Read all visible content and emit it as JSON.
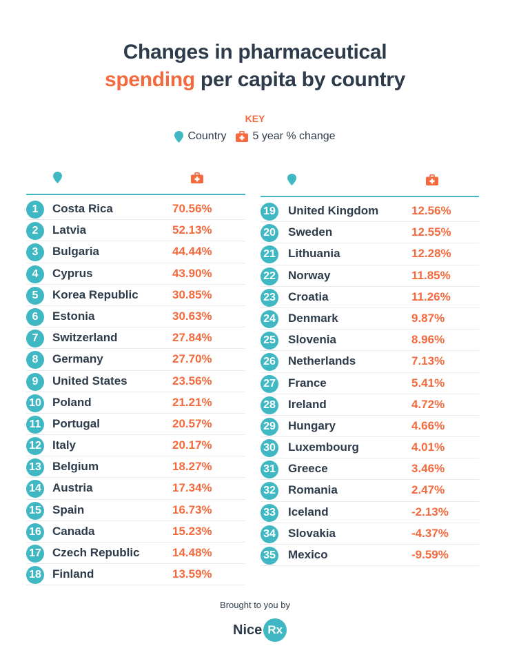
{
  "title": {
    "line1": "Changes in pharmaceutical",
    "line2_accent": "spending",
    "line2_rest": " per capita by country"
  },
  "key": {
    "label": "KEY",
    "country_label": "Country",
    "change_label": "5 year % change"
  },
  "colors": {
    "accent": "#f26a3d",
    "teal": "#3fb8c4",
    "text": "#2d3b4a"
  },
  "icons": {
    "country": "map-pin-icon",
    "change": "medical-kit-icon"
  },
  "chart_data": {
    "type": "table",
    "columns": [
      "Rank",
      "Country",
      "5 year % change"
    ],
    "rows": [
      {
        "rank": "1",
        "country": "Costa Rica",
        "change": "70.56%"
      },
      {
        "rank": "2",
        "country": "Latvia",
        "change": "52.13%"
      },
      {
        "rank": "3",
        "country": "Bulgaria",
        "change": "44.44%"
      },
      {
        "rank": "4",
        "country": "Cyprus",
        "change": "43.90%"
      },
      {
        "rank": "5",
        "country": "Korea Republic",
        "change": "30.85%"
      },
      {
        "rank": "6",
        "country": "Estonia",
        "change": "30.63%"
      },
      {
        "rank": "7",
        "country": "Switzerland",
        "change": "27.84%"
      },
      {
        "rank": "8",
        "country": "Germany",
        "change": "27.70%"
      },
      {
        "rank": "9",
        "country": "United States",
        "change": "23.56%"
      },
      {
        "rank": "10",
        "country": "Poland",
        "change": "21.21%"
      },
      {
        "rank": "11",
        "country": "Portugal",
        "change": "20.57%"
      },
      {
        "rank": "12",
        "country": "Italy",
        "change": "20.17%"
      },
      {
        "rank": "13",
        "country": "Belgium",
        "change": "18.27%"
      },
      {
        "rank": "14",
        "country": "Austria",
        "change": "17.34%"
      },
      {
        "rank": "15",
        "country": "Spain",
        "change": "16.73%"
      },
      {
        "rank": "16",
        "country": "Canada",
        "change": "15.23%"
      },
      {
        "rank": "17",
        "country": "Czech Republic",
        "change": "14.48%"
      },
      {
        "rank": "18",
        "country": "Finland",
        "change": "13.59%"
      },
      {
        "rank": "19",
        "country": "United Kingdom",
        "change": "12.56%"
      },
      {
        "rank": "20",
        "country": "Sweden",
        "change": "12.55%"
      },
      {
        "rank": "21",
        "country": "Lithuania",
        "change": "12.28%"
      },
      {
        "rank": "22",
        "country": "Norway",
        "change": "11.85%"
      },
      {
        "rank": "23",
        "country": "Croatia",
        "change": "11.26%"
      },
      {
        "rank": "24",
        "country": "Denmark",
        "change": "9.87%"
      },
      {
        "rank": "25",
        "country": "Slovenia",
        "change": "8.96%"
      },
      {
        "rank": "26",
        "country": "Netherlands",
        "change": "7.13%"
      },
      {
        "rank": "27",
        "country": "France",
        "change": "5.41%"
      },
      {
        "rank": "28",
        "country": "Ireland",
        "change": "4.72%"
      },
      {
        "rank": "29",
        "country": "Hungary",
        "change": "4.66%"
      },
      {
        "rank": "30",
        "country": "Luxembourg",
        "change": "4.01%"
      },
      {
        "rank": "31",
        "country": "Greece",
        "change": "3.46%"
      },
      {
        "rank": "32",
        "country": "Romania",
        "change": "2.47%"
      },
      {
        "rank": "33",
        "country": "Iceland",
        "change": "-2.13%"
      },
      {
        "rank": "34",
        "country": "Slovakia",
        "change": "-4.37%"
      },
      {
        "rank": "35",
        "country": "Mexico",
        "change": "-9.59%"
      }
    ]
  },
  "footer": {
    "brought": "Brought to you by",
    "logo_nice": "Nice",
    "logo_rx": "Rx"
  }
}
